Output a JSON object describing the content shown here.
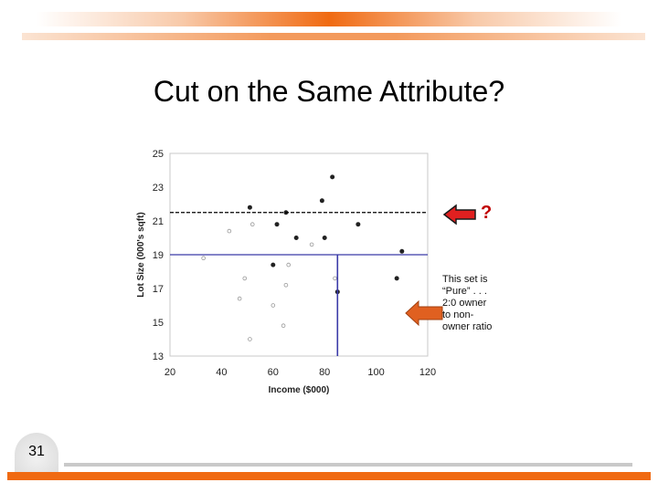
{
  "slide": {
    "title": "Cut on the Same Attribute?",
    "number": "31",
    "note": "This set is\n“Pure” . . .\n2:0 owner\nto non-\nowner ratio",
    "question_mark": "?"
  },
  "colors": {
    "accent": "#f06a12",
    "split_line": "#3a3aa8",
    "question": "#c00000",
    "arrow_red": "#e02020",
    "arrow_orange": "#e06020"
  },
  "chart_data": {
    "type": "scatter",
    "xlabel": "Income ($000)",
    "ylabel": "Lot Size (000's sqft)",
    "xlim": [
      20,
      120
    ],
    "ylim": [
      13,
      25
    ],
    "xticks": [
      20,
      40,
      60,
      80,
      100,
      120
    ],
    "yticks": [
      13,
      15,
      17,
      19,
      21,
      23,
      25
    ],
    "splits": {
      "horizontal_solid": 19,
      "vertical_solid": 85,
      "horizontal_dashed": 21.5
    },
    "series": [
      {
        "marker": "filled",
        "points": [
          [
            51,
            21.8
          ],
          [
            61.5,
            20.8
          ],
          [
            65,
            21.5
          ],
          [
            69,
            20
          ],
          [
            79,
            22.2
          ],
          [
            83,
            23.6
          ],
          [
            80,
            20
          ],
          [
            93,
            20.8
          ],
          [
            110,
            19.2
          ],
          [
            60,
            18.4
          ],
          [
            108,
            17.6
          ],
          [
            85,
            16.8
          ]
        ]
      },
      {
        "marker": "hollow",
        "points": [
          [
            52,
            20.8
          ],
          [
            43,
            20.4
          ],
          [
            33,
            18.8
          ],
          [
            49,
            17.6
          ],
          [
            47,
            16.4
          ],
          [
            51,
            14
          ],
          [
            60,
            16
          ],
          [
            64,
            14.8
          ],
          [
            66,
            18.4
          ],
          [
            65,
            17.2
          ],
          [
            84,
            17.6
          ],
          [
            75,
            19.6
          ]
        ]
      }
    ]
  }
}
